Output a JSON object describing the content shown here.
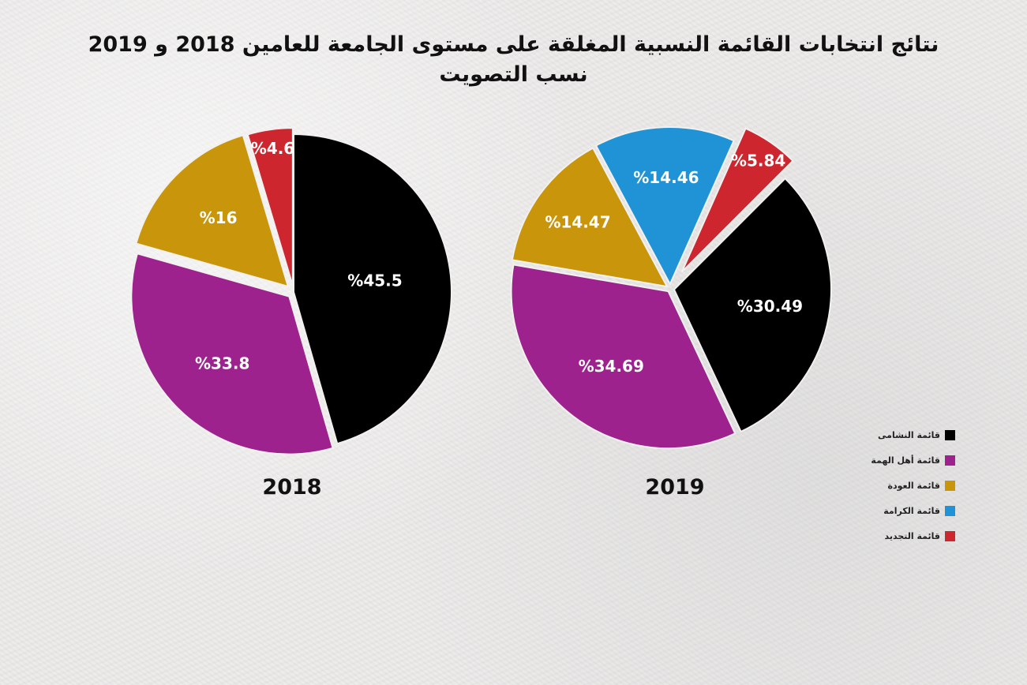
{
  "title": {
    "line1": "نتائج انتخابات القائمة النسبية المغلقة على مستوى الجامعة للعامين 2018 و 2019",
    "line2": "نسب التصويت"
  },
  "legend": [
    {
      "label": "قائمة النشامى",
      "color": "#000000"
    },
    {
      "label": "قائمة أهل الهمة",
      "color": "#9e228e"
    },
    {
      "label": "قائمة العودة",
      "color": "#c9950a"
    },
    {
      "label": "قائمة الكرامة",
      "color": "#1f93d6"
    },
    {
      "label": "قائمة التجديد",
      "color": "#cd262e"
    }
  ],
  "chart_data": [
    {
      "type": "pie",
      "title": "2018",
      "series": [
        {
          "name": "قائمة النشامى",
          "value": 45.5,
          "label": "%45.5",
          "color": "#000000"
        },
        {
          "name": "قائمة أهل الهمة",
          "value": 33.8,
          "label": "%33.8",
          "color": "#9e228e"
        },
        {
          "name": "قائمة العودة",
          "value": 16,
          "label": "%16",
          "color": "#c9950a"
        },
        {
          "name": "قائمة التجديد",
          "value": 4.6,
          "label": "%4.6",
          "color": "#cd262e"
        }
      ]
    },
    {
      "type": "pie",
      "title": "2019",
      "series": [
        {
          "name": "قائمة النشامى",
          "value": 30.49,
          "label": "%30.49",
          "color": "#000000"
        },
        {
          "name": "قائمة أهل الهمة",
          "value": 34.69,
          "label": "%34.69",
          "color": "#9e228e"
        },
        {
          "name": "قائمة العودة",
          "value": 14.47,
          "label": "%14.47",
          "color": "#c9950a"
        },
        {
          "name": "قائمة الكرامة",
          "value": 14.46,
          "label": "%14.46",
          "color": "#1f93d6"
        },
        {
          "name": "قائمة التجديد",
          "value": 5.84,
          "label": "%5.84",
          "color": "#cd262e"
        }
      ]
    }
  ]
}
